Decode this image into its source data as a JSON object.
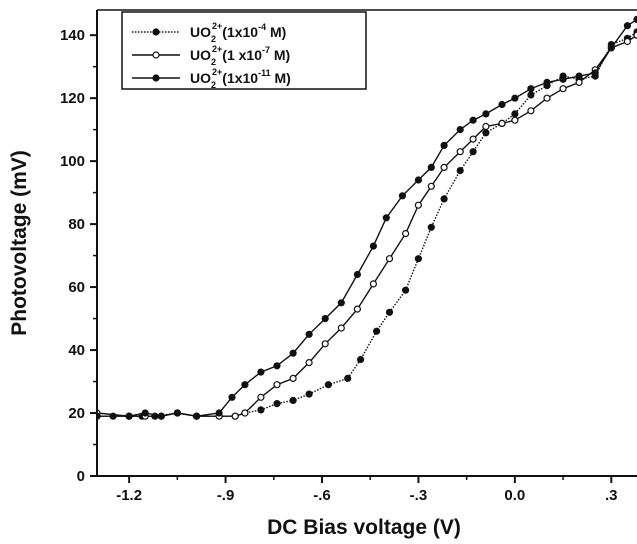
{
  "chart_data": {
    "type": "line",
    "xlabel": "DC Bias voltage (V)",
    "ylabel": "Photovoltage (mV)",
    "xlim": [
      -1.3,
      0.38
    ],
    "ylim": [
      0,
      148
    ],
    "xticks": [
      -1.2,
      -0.9,
      -0.6,
      -0.3,
      0.0,
      0.3
    ],
    "xtick_labels": [
      "-1.2",
      "-.9",
      "-.6",
      "-.3",
      "0.0",
      ".3"
    ],
    "yticks": [
      0,
      20,
      40,
      60,
      80,
      100,
      120,
      140
    ],
    "ytick_labels": [
      "0",
      "20",
      "40",
      "60",
      "80",
      "100",
      "120",
      "140"
    ],
    "grid": false,
    "legend_position": "top-left",
    "series": [
      {
        "name": "UO2 2+ (1x10-4 M)",
        "legend": {
          "base": "UO",
          "sub": "2",
          "sup": "2+",
          "conc": "(1x10",
          "exp": "-4",
          "unit": " M)"
        },
        "marker": "filled-circle",
        "line_style": "dotted",
        "x": [
          -1.3,
          -1.25,
          -1.2,
          -1.16,
          -1.12,
          -1.05,
          -0.99,
          -0.87,
          -0.84,
          -0.79,
          -0.74,
          -0.69,
          -0.64,
          -0.58,
          -0.52,
          -0.48,
          -0.43,
          -0.39,
          -0.34,
          -0.3,
          -0.26,
          -0.22,
          -0.17,
          -0.13,
          -0.09,
          -0.04,
          0.0,
          0.05,
          0.1,
          0.15,
          0.2,
          0.25,
          0.3,
          0.35,
          0.38
        ],
        "y": [
          19,
          19,
          19,
          19,
          19,
          20,
          19,
          19,
          20,
          21,
          23,
          24,
          26,
          29,
          31,
          37,
          46,
          52,
          59,
          69,
          79,
          88,
          97,
          103,
          109,
          112,
          115,
          121,
          124,
          127,
          126,
          127,
          137,
          139,
          141
        ]
      },
      {
        "name": "UO2 2+ (1 x10-7 M)",
        "legend": {
          "base": "UO",
          "sub": "2",
          "sup": "2+",
          "conc": "(1 x10",
          "exp": "-7",
          "unit": " M)"
        },
        "marker": "open-circle",
        "line_style": "solid",
        "x": [
          -1.3,
          -1.2,
          -1.15,
          -1.1,
          -1.05,
          -0.99,
          -0.92,
          -0.87,
          -0.84,
          -0.79,
          -0.74,
          -0.69,
          -0.64,
          -0.59,
          -0.54,
          -0.49,
          -0.44,
          -0.39,
          -0.34,
          -0.3,
          -0.26,
          -0.22,
          -0.17,
          -0.13,
          -0.09,
          -0.04,
          0.0,
          0.05,
          0.1,
          0.15,
          0.2,
          0.25,
          0.3,
          0.35,
          0.38
        ],
        "y": [
          20,
          19,
          19,
          19,
          20,
          19,
          19,
          19,
          20,
          25,
          29,
          31,
          36,
          42,
          47,
          53,
          61,
          69,
          77,
          86,
          92,
          98,
          103,
          107,
          111,
          112,
          113,
          116,
          120,
          123,
          125,
          129,
          136,
          138,
          140
        ]
      },
      {
        "name": "UO2 2+ (1x10-11 M)",
        "legend": {
          "base": "UO",
          "sub": "2",
          "sup": "2+",
          "conc": "(1x10",
          "exp": "-11",
          "unit": " M)"
        },
        "marker": "filled-circle",
        "line_style": "solid",
        "x": [
          -1.3,
          -1.2,
          -1.15,
          -1.1,
          -1.05,
          -0.99,
          -0.92,
          -0.88,
          -0.84,
          -0.79,
          -0.74,
          -0.69,
          -0.64,
          -0.59,
          -0.54,
          -0.49,
          -0.44,
          -0.4,
          -0.35,
          -0.3,
          -0.26,
          -0.22,
          -0.17,
          -0.13,
          -0.09,
          -0.04,
          0.0,
          0.05,
          0.1,
          0.15,
          0.2,
          0.25,
          0.3,
          0.35,
          0.38
        ],
        "y": [
          19,
          19,
          20,
          19,
          20,
          19,
          20,
          25,
          29,
          33,
          35,
          39,
          45,
          50,
          55,
          64,
          73,
          82,
          89,
          94,
          98,
          105,
          110,
          113,
          115,
          118,
          120,
          123,
          125,
          126,
          127,
          128,
          136,
          143,
          145
        ]
      }
    ]
  }
}
